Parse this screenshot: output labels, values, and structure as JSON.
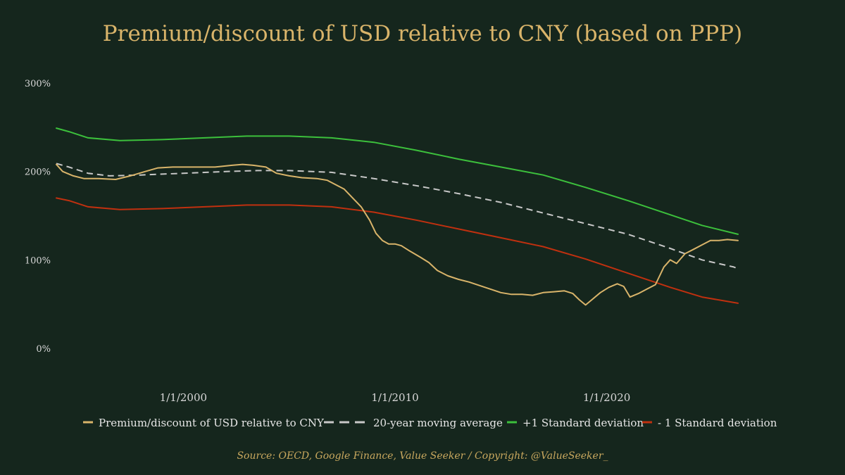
{
  "chart_data": {
    "type": "line",
    "title": "Premium/discount of USD relative to CNY (based on PPP)",
    "source": "Source: OECD, Google Finance, Value Seeker / Copyright: @ValueSeeker_",
    "x_range": [
      "1994-01-01",
      "2024-06-01"
    ],
    "y_range": [
      0,
      300
    ],
    "y_ticks": [
      {
        "value": 300,
        "label": "300%"
      },
      {
        "value": 200,
        "label": "200%"
      },
      {
        "value": 100,
        "label": "100%"
      },
      {
        "value": 0,
        "label": "0%"
      }
    ],
    "x_ticks": [
      {
        "value": 2000.0,
        "label": "1/1/2000"
      },
      {
        "value": 2010.0,
        "label": "1/1/2010"
      },
      {
        "value": 2020.0,
        "label": "1/1/2020"
      }
    ],
    "grid": false,
    "legend_position": "bottom",
    "series": [
      {
        "name": "Premium/discount of USD relative to CNY",
        "color": "#d9b46a",
        "style": "solid",
        "points": [
          [
            1994.0,
            208
          ],
          [
            1994.3,
            200
          ],
          [
            1994.8,
            195
          ],
          [
            1995.3,
            192
          ],
          [
            1996.0,
            192
          ],
          [
            1996.8,
            191
          ],
          [
            1997.5,
            195
          ],
          [
            1998.2,
            200
          ],
          [
            1998.8,
            204
          ],
          [
            1999.5,
            205
          ],
          [
            2000.5,
            205
          ],
          [
            2001.5,
            205
          ],
          [
            2002.3,
            207
          ],
          [
            2002.8,
            208
          ],
          [
            2003.3,
            207
          ],
          [
            2003.9,
            205
          ],
          [
            2004.4,
            198
          ],
          [
            2005.0,
            195
          ],
          [
            2005.6,
            193
          ],
          [
            2006.3,
            192
          ],
          [
            2006.8,
            190
          ],
          [
            2007.2,
            185
          ],
          [
            2007.6,
            180
          ],
          [
            2008.0,
            170
          ],
          [
            2008.4,
            160
          ],
          [
            2008.8,
            145
          ],
          [
            2009.1,
            130
          ],
          [
            2009.4,
            122
          ],
          [
            2009.7,
            118
          ],
          [
            2010.0,
            118
          ],
          [
            2010.3,
            116
          ],
          [
            2010.7,
            110
          ],
          [
            2011.2,
            103
          ],
          [
            2011.6,
            97
          ],
          [
            2012.0,
            88
          ],
          [
            2012.5,
            82
          ],
          [
            2013.0,
            78
          ],
          [
            2013.5,
            75
          ],
          [
            2014.0,
            71
          ],
          [
            2014.5,
            67
          ],
          [
            2015.0,
            63
          ],
          [
            2015.5,
            61
          ],
          [
            2016.0,
            61
          ],
          [
            2016.5,
            60
          ],
          [
            2017.0,
            63
          ],
          [
            2017.5,
            64
          ],
          [
            2018.0,
            65
          ],
          [
            2018.4,
            62
          ],
          [
            2018.7,
            55
          ],
          [
            2019.0,
            49
          ],
          [
            2019.3,
            55
          ],
          [
            2019.7,
            63
          ],
          [
            2020.1,
            69
          ],
          [
            2020.5,
            73
          ],
          [
            2020.8,
            70
          ],
          [
            2021.1,
            58
          ],
          [
            2021.5,
            62
          ],
          [
            2021.9,
            67
          ],
          [
            2022.3,
            72
          ],
          [
            2022.7,
            92
          ],
          [
            2023.0,
            100
          ],
          [
            2023.3,
            96
          ],
          [
            2023.7,
            107
          ],
          [
            2024.1,
            112
          ],
          [
            2024.5,
            117
          ],
          [
            2024.9,
            122
          ],
          [
            2025.3,
            122
          ],
          [
            2025.7,
            123
          ],
          [
            2026.2,
            122
          ]
        ]
      },
      {
        "name": "20-year moving average",
        "color": "#c8c8c8",
        "style": "dashed",
        "points": [
          [
            1994.0,
            209
          ],
          [
            1994.6,
            205
          ],
          [
            1995.5,
            198
          ],
          [
            1996.5,
            195
          ],
          [
            1998.0,
            196
          ],
          [
            2000.0,
            198
          ],
          [
            2002.0,
            200
          ],
          [
            2003.5,
            201
          ],
          [
            2005.0,
            201
          ],
          [
            2007.0,
            199
          ],
          [
            2009.0,
            192
          ],
          [
            2011.0,
            184
          ],
          [
            2013.0,
            175
          ],
          [
            2015.0,
            165
          ],
          [
            2017.0,
            153
          ],
          [
            2019.0,
            141
          ],
          [
            2021.0,
            129
          ],
          [
            2023.0,
            113
          ],
          [
            2024.5,
            100
          ],
          [
            2026.0,
            92
          ],
          [
            2026.2,
            90
          ]
        ]
      },
      {
        "name": "+1 Standard deviation",
        "color": "#3cc03c",
        "style": "solid",
        "points": [
          [
            1994.0,
            249
          ],
          [
            1994.6,
            245
          ],
          [
            1995.5,
            238
          ],
          [
            1997.0,
            235
          ],
          [
            1999.0,
            236
          ],
          [
            2001.0,
            238
          ],
          [
            2003.0,
            240
          ],
          [
            2005.0,
            240
          ],
          [
            2007.0,
            238
          ],
          [
            2009.0,
            233
          ],
          [
            2011.0,
            224
          ],
          [
            2013.0,
            214
          ],
          [
            2015.0,
            205
          ],
          [
            2017.0,
            196
          ],
          [
            2019.0,
            182
          ],
          [
            2021.0,
            167
          ],
          [
            2023.0,
            151
          ],
          [
            2024.5,
            139
          ],
          [
            2026.2,
            129
          ]
        ]
      },
      {
        "name": "- 1 Standard deviation",
        "color": "#c0300f",
        "style": "solid",
        "points": [
          [
            1994.0,
            170
          ],
          [
            1994.6,
            167
          ],
          [
            1995.5,
            160
          ],
          [
            1997.0,
            157
          ],
          [
            1999.0,
            158
          ],
          [
            2001.0,
            160
          ],
          [
            2003.0,
            162
          ],
          [
            2005.0,
            162
          ],
          [
            2007.0,
            160
          ],
          [
            2009.0,
            154
          ],
          [
            2011.0,
            145
          ],
          [
            2013.0,
            135
          ],
          [
            2015.0,
            125
          ],
          [
            2017.0,
            115
          ],
          [
            2019.0,
            101
          ],
          [
            2021.0,
            85
          ],
          [
            2023.0,
            69
          ],
          [
            2024.5,
            58
          ],
          [
            2026.2,
            51
          ]
        ]
      }
    ]
  }
}
